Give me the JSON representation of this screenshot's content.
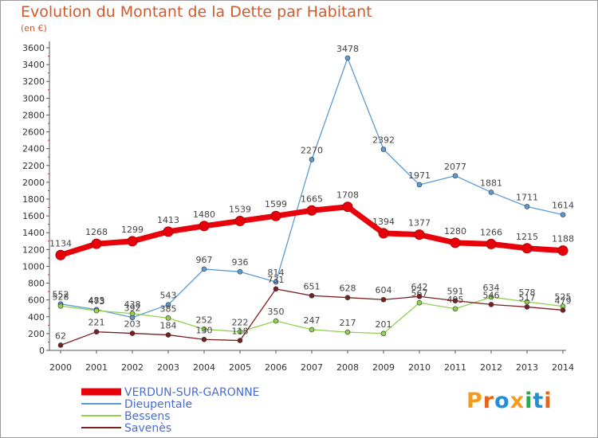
{
  "title": "Evolution du Montant de la Dette par Habitant",
  "subtitle": "(en €)",
  "logo": {
    "text": "Proxiti",
    "colors": [
      "#f39c1d",
      "#e8641b",
      "#1f8fd6",
      "#f39c1d",
      "#2aa84a",
      "#1f8fd6",
      "#e8641b"
    ]
  },
  "chart_data": {
    "type": "line",
    "x": [
      "2000",
      "2001",
      "2002",
      "2003",
      "2004",
      "2005",
      "2006",
      "2007",
      "2008",
      "2009",
      "2010",
      "2011",
      "2012",
      "2013",
      "2014"
    ],
    "ylim": [
      0,
      3600
    ],
    "yticks": [
      0,
      200,
      400,
      600,
      800,
      1000,
      1200,
      1400,
      1600,
      1800,
      2000,
      2200,
      2400,
      2600,
      2800,
      3000,
      3200,
      3400,
      3600
    ],
    "grid": false,
    "legend_position": "bottom-left",
    "series": [
      {
        "name": "VERDUN-SUR-GARONNE",
        "color": "#e8000b",
        "values": [
          1134,
          1268,
          1299,
          1413,
          1480,
          1539,
          1599,
          1665,
          1708,
          1394,
          1377,
          1280,
          1266,
          1215,
          1188
        ]
      },
      {
        "name": "Dieupentale",
        "color": "#5b9bd5",
        "values": [
          552,
          485,
          392,
          543,
          967,
          936,
          814,
          2270,
          3478,
          2392,
          1971,
          2077,
          1881,
          1711,
          1614
        ]
      },
      {
        "name": "Bessens",
        "color": "#92d050",
        "values": [
          528,
          473,
          438,
          385,
          252,
          222,
          350,
          247,
          217,
          201,
          567,
          495,
          634,
          578,
          525
        ]
      },
      {
        "name": "Savenès",
        "color": "#7a1f1f",
        "values": [
          62,
          221,
          203,
          184,
          130,
          118,
          731,
          651,
          628,
          604,
          642,
          591,
          546,
          517,
          479
        ]
      }
    ]
  }
}
